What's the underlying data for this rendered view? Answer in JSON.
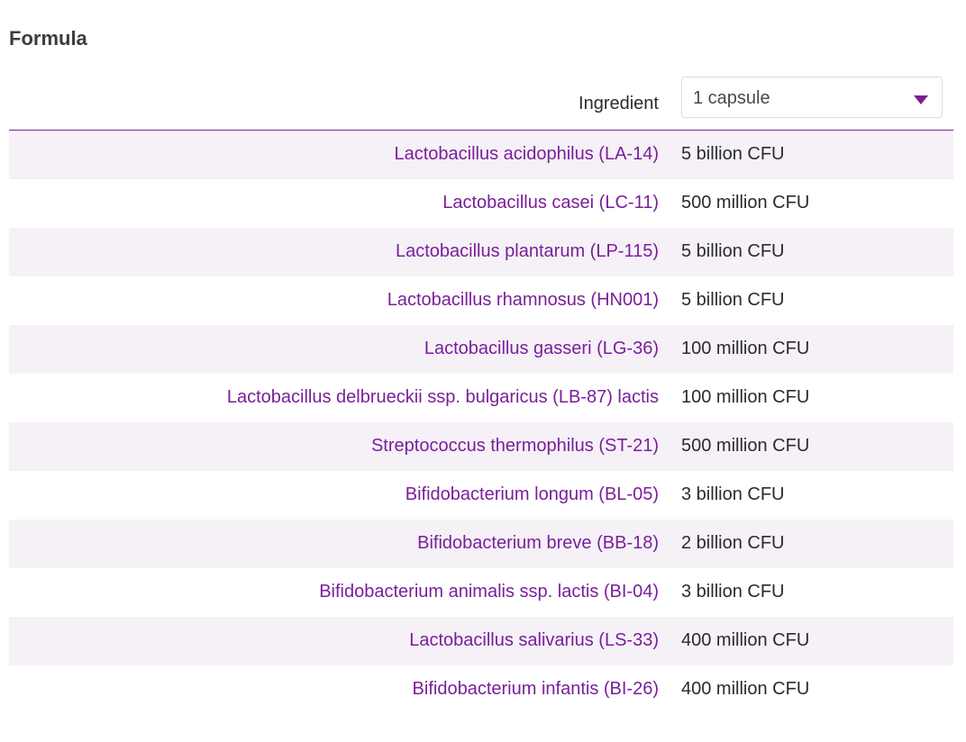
{
  "section": {
    "title": "Formula"
  },
  "table": {
    "header_label": "Ingredient",
    "serving_select": {
      "value": "1 capsule"
    },
    "rows": [
      {
        "ingredient": "Lactobacillus acidophilus (LA-14)",
        "amount": "5 billion CFU"
      },
      {
        "ingredient": "Lactobacillus casei (LC-11)",
        "amount": "500 million CFU"
      },
      {
        "ingredient": "Lactobacillus plantarum (LP-115)",
        "amount": "5 billion CFU"
      },
      {
        "ingredient": "Lactobacillus rhamnosus (HN001)",
        "amount": "5 billion CFU"
      },
      {
        "ingredient": "Lactobacillus gasseri (LG-36)",
        "amount": "100 million CFU"
      },
      {
        "ingredient": "Lactobacillus delbrueckii ssp. bulgaricus (LB-87) lactis",
        "amount": "100 million CFU"
      },
      {
        "ingredient": "Streptococcus thermophilus (ST-21)",
        "amount": "500 million CFU"
      },
      {
        "ingredient": "Bifidobacterium longum (BL-05)",
        "amount": "3 billion CFU"
      },
      {
        "ingredient": "Bifidobacterium breve (BB-18)",
        "amount": "2 billion CFU"
      },
      {
        "ingredient": "Bifidobacterium animalis ssp. lactis (BI-04)",
        "amount": "3 billion CFU"
      },
      {
        "ingredient": "Lactobacillus salivarius (LS-33)",
        "amount": "400 million CFU"
      },
      {
        "ingredient": "Bifidobacterium infantis (BI-26)",
        "amount": "400 million CFU"
      }
    ]
  },
  "colors": {
    "accent": "#7a1f9a",
    "row_alt": "#f5f1f7",
    "divider": "#7a1f8f"
  }
}
